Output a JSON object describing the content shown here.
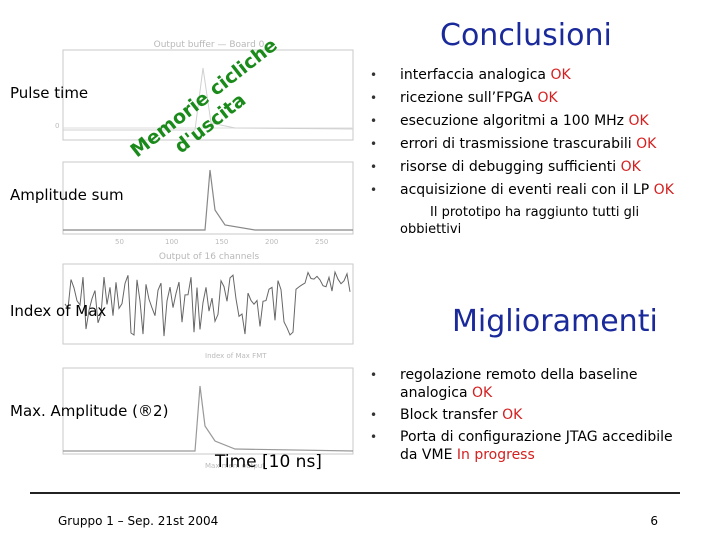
{
  "title": "Conclusioni",
  "subtitle2": "Miglioramenti",
  "labels": {
    "pulse_time": "Pulse time",
    "amplitude_sum": "Amplitude sum",
    "index_of_max": "Index of Max",
    "max_amplitude": "Max. Amplitude (®2)",
    "time_axis": "Time [10 ns]",
    "memorie_line1": "Memorie cicliche",
    "memorie_line2": "d'uscita"
  },
  "plot_titles": [
    "Output buffer — Board 0",
    "Output of 16 channels",
    "Index of Max FMT",
    "Max mem output"
  ],
  "conclusions": [
    {
      "text": "interfaccia analogica ",
      "status": "OK"
    },
    {
      "text": "ricezione sull’FPGA ",
      "status": "OK"
    },
    {
      "text": "esecuzione algoritmi a 100 MHz  ",
      "status": "OK"
    },
    {
      "text": "errori di trasmissione trascurabili ",
      "status": "OK"
    },
    {
      "text": "risorse di debugging sufficienti ",
      "status": "OK"
    },
    {
      "text": "acquisizione di eventi reali con il LP ",
      "status": "OK"
    }
  ],
  "conclusion_note": "Il prototipo ha raggiunto tutti gli obbiettivi",
  "improvements": [
    {
      "text": "regolazione remoto della baseline analogica ",
      "status": "OK"
    },
    {
      "text": "Block transfer ",
      "status": "OK"
    },
    {
      "text": "Porta di configurazione JTAG accedibile da VME  ",
      "status": "In progress"
    }
  ],
  "footer": "Gruppo 1 – Sep. 21st  2004",
  "page_number": "6",
  "colors": {
    "title": "#1a2a9a",
    "ok": "#d42020",
    "rotated": "#1a8a1a"
  }
}
